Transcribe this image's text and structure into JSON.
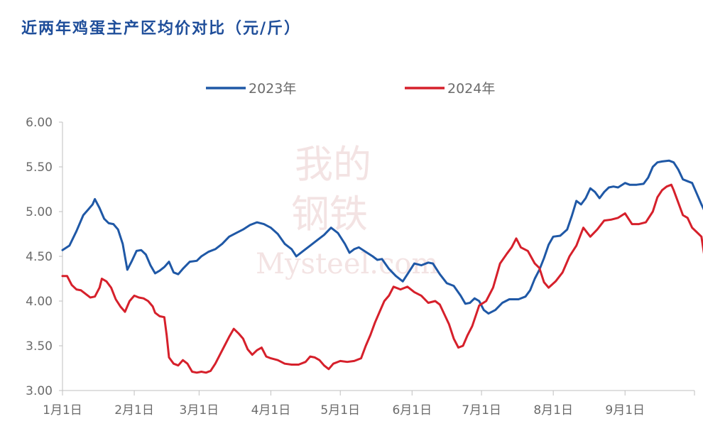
{
  "title": "近两年鸡蛋主产区均价对比（元/斤）",
  "colors": {
    "series_2023": "#1f58a6",
    "series_2024": "#d6202b",
    "axis": "#bfbfbf",
    "tick_text": "#6b6b6b",
    "title": "#1f4e9a"
  },
  "watermark": {
    "line1": "我的",
    "line2": "钢铁",
    "line3": "Mysteel.com"
  },
  "chart_data": {
    "type": "line",
    "title": "近两年鸡蛋主产区均价对比（元/斤）",
    "xlabel": "",
    "ylabel": "",
    "ylim": [
      3.0,
      6.0
    ],
    "yticks": [
      "3.00",
      "3.50",
      "4.00",
      "4.50",
      "5.00",
      "5.50",
      "6.00"
    ],
    "xlim_days": [
      0,
      273
    ],
    "x_tick_labels": [
      "1月1日",
      "2月1日",
      "3月1日",
      "4月1日",
      "5月1日",
      "6月1日",
      "7月1日",
      "8月1日",
      "9月1日"
    ],
    "x_tick_days": [
      0,
      31,
      59,
      90,
      120,
      151,
      181,
      212,
      243
    ],
    "grid": false,
    "legend_position": "top-center",
    "series": [
      {
        "name": "2023年",
        "points": [
          [
            0,
            4.57
          ],
          [
            3,
            4.62
          ],
          [
            6,
            4.78
          ],
          [
            9,
            4.96
          ],
          [
            11,
            5.02
          ],
          [
            13,
            5.08
          ],
          [
            14,
            5.14
          ],
          [
            16,
            5.04
          ],
          [
            18,
            4.92
          ],
          [
            20,
            4.87
          ],
          [
            22,
            4.86
          ],
          [
            24,
            4.8
          ],
          [
            26,
            4.64
          ],
          [
            28,
            4.35
          ],
          [
            30,
            4.45
          ],
          [
            32,
            4.56
          ],
          [
            34,
            4.57
          ],
          [
            36,
            4.52
          ],
          [
            38,
            4.4
          ],
          [
            40,
            4.31
          ],
          [
            42,
            4.34
          ],
          [
            44,
            4.38
          ],
          [
            46,
            4.44
          ],
          [
            48,
            4.32
          ],
          [
            50,
            4.3
          ],
          [
            52,
            4.36
          ],
          [
            55,
            4.44
          ],
          [
            58,
            4.45
          ],
          [
            60,
            4.5
          ],
          [
            63,
            4.55
          ],
          [
            66,
            4.58
          ],
          [
            69,
            4.64
          ],
          [
            72,
            4.72
          ],
          [
            75,
            4.76
          ],
          [
            78,
            4.8
          ],
          [
            81,
            4.85
          ],
          [
            84,
            4.88
          ],
          [
            87,
            4.86
          ],
          [
            90,
            4.82
          ],
          [
            93,
            4.75
          ],
          [
            96,
            4.64
          ],
          [
            99,
            4.58
          ],
          [
            101,
            4.5
          ],
          [
            104,
            4.56
          ],
          [
            107,
            4.62
          ],
          [
            110,
            4.68
          ],
          [
            113,
            4.74
          ],
          [
            116,
            4.82
          ],
          [
            119,
            4.76
          ],
          [
            122,
            4.64
          ],
          [
            124,
            4.54
          ],
          [
            126,
            4.58
          ],
          [
            128,
            4.6
          ],
          [
            131,
            4.55
          ],
          [
            134,
            4.5
          ],
          [
            136,
            4.46
          ],
          [
            138,
            4.47
          ],
          [
            141,
            4.36
          ],
          [
            144,
            4.28
          ],
          [
            147,
            4.22
          ],
          [
            150,
            4.34
          ],
          [
            152,
            4.42
          ],
          [
            155,
            4.4
          ],
          [
            158,
            4.43
          ],
          [
            160,
            4.42
          ],
          [
            163,
            4.3
          ],
          [
            166,
            4.2
          ],
          [
            169,
            4.17
          ],
          [
            172,
            4.06
          ],
          [
            174,
            3.97
          ],
          [
            176,
            3.98
          ],
          [
            178,
            4.03
          ],
          [
            180,
            4.0
          ],
          [
            182,
            3.9
          ],
          [
            184,
            3.86
          ],
          [
            187,
            3.9
          ],
          [
            190,
            3.98
          ],
          [
            193,
            4.02
          ],
          [
            197,
            4.02
          ],
          [
            200,
            4.05
          ],
          [
            202,
            4.12
          ],
          [
            204,
            4.25
          ],
          [
            206,
            4.35
          ],
          [
            208,
            4.48
          ],
          [
            210,
            4.63
          ],
          [
            212,
            4.72
          ],
          [
            215,
            4.73
          ],
          [
            218,
            4.8
          ],
          [
            220,
            4.95
          ],
          [
            222,
            5.12
          ],
          [
            224,
            5.08
          ],
          [
            226,
            5.15
          ],
          [
            228,
            5.26
          ],
          [
            230,
            5.22
          ],
          [
            232,
            5.15
          ],
          [
            234,
            5.22
          ],
          [
            236,
            5.27
          ],
          [
            238,
            5.28
          ],
          [
            240,
            5.27
          ],
          [
            243,
            5.32
          ],
          [
            245,
            5.3
          ],
          [
            248,
            5.3
          ],
          [
            251,
            5.31
          ],
          [
            253,
            5.38
          ],
          [
            255,
            5.5
          ],
          [
            257,
            5.55
          ],
          [
            259,
            5.56
          ],
          [
            262,
            5.57
          ],
          [
            264,
            5.55
          ],
          [
            266,
            5.47
          ],
          [
            268,
            5.36
          ],
          [
            270,
            5.34
          ],
          [
            272,
            5.32
          ],
          [
            274,
            5.2
          ],
          [
            276,
            5.08
          ],
          [
            278,
            4.97
          ]
        ]
      },
      {
        "name": "2024年",
        "points": [
          [
            0,
            4.28
          ],
          [
            2,
            4.28
          ],
          [
            4,
            4.18
          ],
          [
            6,
            4.13
          ],
          [
            8,
            4.12
          ],
          [
            10,
            4.08
          ],
          [
            12,
            4.04
          ],
          [
            14,
            4.05
          ],
          [
            16,
            4.15
          ],
          [
            17,
            4.25
          ],
          [
            19,
            4.22
          ],
          [
            21,
            4.15
          ],
          [
            23,
            4.02
          ],
          [
            25,
            3.94
          ],
          [
            27,
            3.88
          ],
          [
            29,
            4.0
          ],
          [
            31,
            4.06
          ],
          [
            33,
            4.04
          ],
          [
            35,
            4.03
          ],
          [
            37,
            4.0
          ],
          [
            39,
            3.94
          ],
          [
            40,
            3.87
          ],
          [
            42,
            3.83
          ],
          [
            44,
            3.82
          ],
          [
            45,
            3.62
          ],
          [
            46,
            3.37
          ],
          [
            48,
            3.3
          ],
          [
            50,
            3.28
          ],
          [
            52,
            3.34
          ],
          [
            54,
            3.3
          ],
          [
            56,
            3.21
          ],
          [
            58,
            3.2
          ],
          [
            60,
            3.21
          ],
          [
            62,
            3.2
          ],
          [
            64,
            3.22
          ],
          [
            66,
            3.3
          ],
          [
            68,
            3.4
          ],
          [
            70,
            3.5
          ],
          [
            72,
            3.6
          ],
          [
            74,
            3.69
          ],
          [
            76,
            3.64
          ],
          [
            78,
            3.58
          ],
          [
            80,
            3.46
          ],
          [
            82,
            3.4
          ],
          [
            84,
            3.45
          ],
          [
            86,
            3.48
          ],
          [
            88,
            3.38
          ],
          [
            90,
            3.36
          ],
          [
            93,
            3.34
          ],
          [
            96,
            3.3
          ],
          [
            99,
            3.29
          ],
          [
            102,
            3.29
          ],
          [
            105,
            3.32
          ],
          [
            107,
            3.38
          ],
          [
            109,
            3.37
          ],
          [
            111,
            3.34
          ],
          [
            113,
            3.28
          ],
          [
            115,
            3.24
          ],
          [
            117,
            3.3
          ],
          [
            120,
            3.33
          ],
          [
            123,
            3.32
          ],
          [
            126,
            3.33
          ],
          [
            129,
            3.36
          ],
          [
            131,
            3.5
          ],
          [
            133,
            3.62
          ],
          [
            135,
            3.76
          ],
          [
            137,
            3.88
          ],
          [
            139,
            4.0
          ],
          [
            141,
            4.06
          ],
          [
            143,
            4.16
          ],
          [
            146,
            4.13
          ],
          [
            149,
            4.16
          ],
          [
            152,
            4.1
          ],
          [
            155,
            4.06
          ],
          [
            158,
            3.98
          ],
          [
            161,
            4.0
          ],
          [
            163,
            3.96
          ],
          [
            165,
            3.85
          ],
          [
            167,
            3.74
          ],
          [
            169,
            3.58
          ],
          [
            171,
            3.48
          ],
          [
            173,
            3.5
          ],
          [
            175,
            3.62
          ],
          [
            177,
            3.72
          ],
          [
            180,
            3.95
          ],
          [
            183,
            4.0
          ],
          [
            186,
            4.15
          ],
          [
            189,
            4.42
          ],
          [
            192,
            4.53
          ],
          [
            194,
            4.6
          ],
          [
            196,
            4.7
          ],
          [
            198,
            4.6
          ],
          [
            201,
            4.56
          ],
          [
            204,
            4.42
          ],
          [
            206,
            4.37
          ],
          [
            208,
            4.21
          ],
          [
            210,
            4.15
          ],
          [
            213,
            4.22
          ],
          [
            216,
            4.32
          ],
          [
            219,
            4.5
          ],
          [
            222,
            4.62
          ],
          [
            225,
            4.82
          ],
          [
            228,
            4.72
          ],
          [
            231,
            4.8
          ],
          [
            234,
            4.9
          ],
          [
            237,
            4.91
          ],
          [
            240,
            4.93
          ],
          [
            243,
            4.98
          ],
          [
            246,
            4.86
          ],
          [
            249,
            4.86
          ],
          [
            252,
            4.88
          ],
          [
            255,
            5.0
          ],
          [
            257,
            5.16
          ],
          [
            259,
            5.24
          ],
          [
            261,
            5.28
          ],
          [
            263,
            5.3
          ],
          [
            264,
            5.24
          ],
          [
            266,
            5.1
          ],
          [
            268,
            4.96
          ],
          [
            270,
            4.93
          ],
          [
            272,
            4.82
          ],
          [
            274,
            4.77
          ],
          [
            276,
            4.72
          ],
          [
            277,
            4.55
          ],
          [
            278,
            4.4
          ]
        ]
      }
    ]
  }
}
